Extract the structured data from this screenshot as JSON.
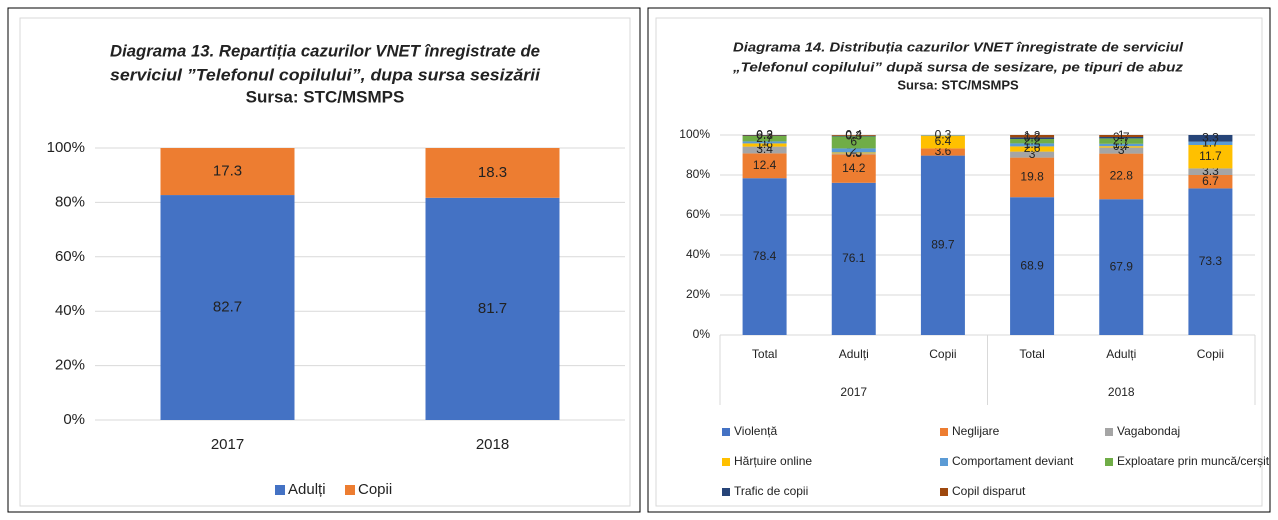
{
  "chart_data": [
    {
      "type": "stacked_bar",
      "title": [
        "Diagrama 13. Repartiția cazurilor VNET înregistrate de",
        "serviciul ”Telefonul copilului”, dupa sursa sesizării"
      ],
      "subtitle": "Sursa: STC/MSMPS",
      "categories": [
        "2017",
        "2018"
      ],
      "series": [
        {
          "name": "Adulți",
          "color": "#4472c4",
          "values": [
            82.7,
            81.7
          ]
        },
        {
          "name": "Copii",
          "color": "#ed7d31",
          "values": [
            17.3,
            18.3
          ]
        }
      ],
      "ylim": [
        0,
        100
      ],
      "yticks": [
        {
          "value": 0,
          "label": "0%"
        },
        {
          "value": 20,
          "label": "20%"
        },
        {
          "value": 40,
          "label": "40%"
        },
        {
          "value": 60,
          "label": "60%"
        },
        {
          "value": 80,
          "label": "80%"
        },
        {
          "value": 100,
          "label": "100%"
        }
      ],
      "grid": true,
      "legend": "bottom"
    },
    {
      "type": "stacked_bar",
      "title": [
        "Diagrama 14. Distribuția cazurilor VNET înregistrate de serviciul",
        "„Telefonul copilului” după sursa de sesizare, pe tipuri de abuz"
      ],
      "subtitle": "Sursa: STC/MSMPS",
      "categories": [
        "Total",
        "Adulți",
        "Copii",
        "Total",
        "Adulți",
        "Copii"
      ],
      "groups": [
        "2017",
        "2018"
      ],
      "series": [
        {
          "name": "Violență",
          "color": "#4472c4",
          "values": [
            78.4,
            76.1,
            89.7,
            68.9,
            67.9,
            73.3
          ]
        },
        {
          "name": "Neglijare",
          "color": "#ed7d31",
          "values": [
            12.4,
            14.2,
            3.6,
            19.8,
            22.8,
            6.7
          ]
        },
        {
          "name": "Vagabondaj",
          "color": "#a5a5a5",
          "values": [
            3.4,
            0.5,
            0,
            3,
            3,
            3.3
          ]
        },
        {
          "name": "Hărțuire online",
          "color": "#ffc000",
          "values": [
            1.6,
            0.5,
            6.4,
            2.6,
            0.7,
            11.7
          ]
        },
        {
          "name": "Comportament deviant",
          "color": "#5b9bd5",
          "values": [
            1.0,
            2.0,
            0.3,
            1.5,
            1.2,
            1.7
          ]
        },
        {
          "name": "Exploatare prin muncă/cerșit",
          "color": "#70ad47",
          "values": [
            2.7,
            6.0,
            0,
            2.2,
            2.7,
            0
          ]
        },
        {
          "name": "Trafic de copii",
          "color": "#264478",
          "values": [
            0.3,
            0.3,
            0,
            0.8,
            0.7,
            3.3
          ]
        },
        {
          "name": "Copil disparut",
          "color": "#9e480e",
          "values": [
            0.2,
            0.4,
            0,
            1.2,
            1.0,
            0
          ]
        }
      ],
      "ylim": [
        0,
        100
      ],
      "yticks": [
        {
          "value": 0,
          "label": "0%"
        },
        {
          "value": 20,
          "label": "20%"
        },
        {
          "value": 40,
          "label": "40%"
        },
        {
          "value": 60,
          "label": "60%"
        },
        {
          "value": 80,
          "label": "80%"
        },
        {
          "value": 100,
          "label": "100%"
        }
      ],
      "grid": true,
      "legend": "bottom"
    }
  ]
}
